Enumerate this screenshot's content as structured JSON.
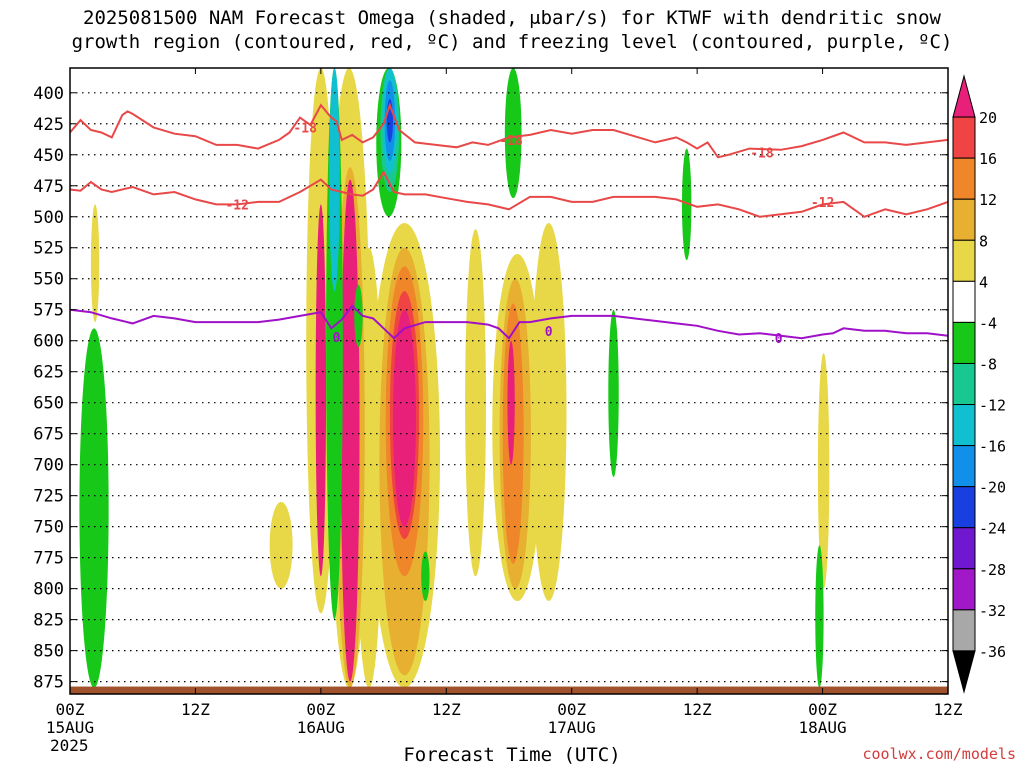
{
  "title_line1": "2025081500 NAM Forecast Omega (shaded, μbar/s) for KTWF with dendritic snow",
  "title_line2": "growth region (contoured, red, ºC) and freezing level (contoured, purple, ºC)",
  "credit": "coolwx.com/models",
  "chart_data": {
    "type": "heatmap",
    "xlabel": "Forecast Time (UTC)",
    "ylabel": "",
    "y_ticks": [
      400,
      425,
      450,
      475,
      500,
      525,
      550,
      575,
      600,
      625,
      650,
      675,
      700,
      725,
      750,
      775,
      800,
      825,
      850,
      875
    ],
    "ylim": [
      380,
      885
    ],
    "xlim": [
      0,
      84
    ],
    "x_ticks": [
      {
        "hour": 0,
        "label": "00Z",
        "sub": "15AUG",
        "sub2": "2025"
      },
      {
        "hour": 12,
        "label": "12Z",
        "sub": "",
        "sub2": ""
      },
      {
        "hour": 24,
        "label": "00Z",
        "sub": "16AUG",
        "sub2": ""
      },
      {
        "hour": 36,
        "label": "12Z",
        "sub": "",
        "sub2": ""
      },
      {
        "hour": 48,
        "label": "00Z",
        "sub": "17AUG",
        "sub2": ""
      },
      {
        "hour": 60,
        "label": "12Z",
        "sub": "",
        "sub2": ""
      },
      {
        "hour": 72,
        "label": "00Z",
        "sub": "18AUG",
        "sub2": ""
      },
      {
        "hour": 84,
        "label": "12Z",
        "sub": "",
        "sub2": ""
      }
    ],
    "grid": true,
    "colorbar": {
      "labels": [
        "20",
        "16",
        "12",
        "8",
        "4",
        "-4",
        "-8",
        "-12",
        "-16",
        "-20",
        "-24",
        "-28",
        "-32",
        "-36"
      ],
      "colors": [
        "#e8207a",
        "#f04444",
        "#f0862a",
        "#e8b030",
        "#e8d848",
        "#ffffff",
        "#18c818",
        "#18c890",
        "#10c0d0",
        "#1090e8",
        "#1840e0",
        "#7018d0",
        "#a018c8",
        "#a8a8a8",
        "#000000"
      ]
    },
    "omega_regions": [
      {
        "level": 4,
        "color": "#e8d848",
        "x": 28.6,
        "p0": 525,
        "p1": 880,
        "w": 1.3
      },
      {
        "level": 4,
        "color": "#e8d848",
        "x": 24.0,
        "p0": 380,
        "p1": 820,
        "w": 1.4
      },
      {
        "level": 4,
        "color": "#e8d848",
        "x": 26.7,
        "p0": 380,
        "p1": 880,
        "w": 2.0
      },
      {
        "level": 4,
        "color": "#e8d848",
        "x": 32.0,
        "p0": 505,
        "p1": 880,
        "w": 3.4
      },
      {
        "level": 4,
        "color": "#e8d848",
        "x": 38.8,
        "p0": 510,
        "p1": 790,
        "w": 1.0
      },
      {
        "level": 4,
        "color": "#e8d848",
        "x": 42.8,
        "p0": 530,
        "p1": 810,
        "w": 2.4
      },
      {
        "level": 4,
        "color": "#e8d848",
        "x": 45.8,
        "p0": 505,
        "p1": 810,
        "w": 1.7
      },
      {
        "level": 4,
        "color": "#e8d848",
        "x": 20.2,
        "p0": 730,
        "p1": 800,
        "w": 1.1
      },
      {
        "level": 4,
        "color": "#e8d848",
        "x": 72.1,
        "p0": 610,
        "p1": 800,
        "w": 0.55
      },
      {
        "level": 4,
        "color": "#e8d848",
        "x": 2.4,
        "p0": 490,
        "p1": 585,
        "w": 0.4
      },
      {
        "level": 8,
        "color": "#e8b030",
        "x": 32.0,
        "p0": 525,
        "p1": 870,
        "w": 2.4
      },
      {
        "level": 8,
        "color": "#e8b030",
        "x": 42.6,
        "p0": 550,
        "p1": 800,
        "w": 1.5
      },
      {
        "level": 8,
        "color": "#e8b030",
        "x": 26.8,
        "p0": 460,
        "p1": 880,
        "w": 1.4
      },
      {
        "level": 12,
        "color": "#f0862a",
        "x": 32.0,
        "p0": 540,
        "p1": 790,
        "w": 1.8
      },
      {
        "level": 12,
        "color": "#f0862a",
        "x": 42.4,
        "p0": 570,
        "p1": 780,
        "w": 1.0
      },
      {
        "level": 16,
        "color": "#f04444",
        "x": 32.0,
        "p0": 560,
        "p1": 760,
        "w": 1.4
      },
      {
        "level": 20,
        "color": "#e8207a",
        "x": 32.0,
        "p0": 575,
        "p1": 750,
        "w": 1.1
      },
      {
        "level": 20,
        "color": "#e8207a",
        "x": 26.8,
        "p0": 470,
        "p1": 875,
        "w": 0.9
      },
      {
        "level": 20,
        "color": "#e8207a",
        "x": 24.0,
        "p0": 490,
        "p1": 790,
        "w": 0.5
      },
      {
        "level": 20,
        "color": "#e8207a",
        "x": 42.2,
        "p0": 600,
        "p1": 700,
        "w": 0.35
      },
      {
        "level": -4,
        "color": "#18c818",
        "x": 2.3,
        "p0": 590,
        "p1": 880,
        "w": 1.4
      },
      {
        "level": -4,
        "color": "#18c818",
        "x": 25.3,
        "p0": 380,
        "p1": 825,
        "w": 0.8
      },
      {
        "level": -4,
        "color": "#18c818",
        "x": 27.6,
        "p0": 555,
        "p1": 605,
        "w": 0.4
      },
      {
        "level": -4,
        "color": "#18c818",
        "x": 30.5,
        "p0": 380,
        "p1": 500,
        "w": 1.2
      },
      {
        "level": -4,
        "color": "#18c818",
        "x": 42.4,
        "p0": 380,
        "p1": 485,
        "w": 0.8
      },
      {
        "level": -4,
        "color": "#18c818",
        "x": 52.0,
        "p0": 575,
        "p1": 710,
        "w": 0.5
      },
      {
        "level": -4,
        "color": "#18c818",
        "x": 59.0,
        "p0": 445,
        "p1": 535,
        "w": 0.45
      },
      {
        "level": -4,
        "color": "#18c818",
        "x": 71.7,
        "p0": 765,
        "p1": 880,
        "w": 0.4
      },
      {
        "level": -4,
        "color": "#18c818",
        "x": 34.0,
        "p0": 770,
        "p1": 810,
        "w": 0.4
      },
      {
        "level": -8,
        "color": "#18c890",
        "x": 30.6,
        "p0": 380,
        "p1": 480,
        "w": 0.9
      },
      {
        "level": -12,
        "color": "#10c0d0",
        "x": 30.6,
        "p0": 380,
        "p1": 465,
        "w": 0.7
      },
      {
        "level": -12,
        "color": "#10c0d0",
        "x": 25.3,
        "p0": 380,
        "p1": 560,
        "w": 0.5
      },
      {
        "level": -16,
        "color": "#1090e8",
        "x": 30.6,
        "p0": 390,
        "p1": 455,
        "w": 0.5
      },
      {
        "level": -20,
        "color": "#1840e0",
        "x": 30.6,
        "p0": 405,
        "p1": 440,
        "w": 0.3
      }
    ],
    "series": [
      {
        "name": "-18",
        "color": "#e84848",
        "x": [
          0,
          1,
          2,
          3,
          4,
          5,
          5.5,
          6,
          8,
          10,
          12,
          14,
          16,
          18,
          20,
          21,
          22,
          23,
          24,
          25,
          25.5,
          26,
          27,
          28,
          29,
          30,
          30.6,
          31.5,
          33,
          35,
          37,
          38.5,
          40,
          42,
          44,
          46,
          48,
          50,
          52,
          54,
          56,
          57,
          58,
          59,
          60,
          61,
          62,
          63,
          65,
          68,
          70,
          72,
          74,
          76,
          78,
          80,
          82,
          84
        ],
        "y": [
          432,
          422,
          430,
          432,
          436,
          418,
          415,
          417,
          428,
          433,
          435,
          442,
          442,
          445,
          438,
          432,
          420,
          426,
          410,
          420,
          423,
          438,
          434,
          440,
          436,
          425,
          410,
          430,
          440,
          442,
          444,
          440,
          442,
          436,
          434,
          430,
          433,
          430,
          430,
          435,
          440,
          438,
          436,
          440,
          445,
          440,
          452,
          450,
          445,
          446,
          443,
          438,
          432,
          440,
          440,
          442,
          440,
          438
        ]
      },
      {
        "name": "-12",
        "color": "#e84848",
        "x": [
          0,
          1,
          2,
          3,
          4,
          6,
          8,
          10,
          12,
          14,
          16,
          18,
          20,
          22,
          24,
          25,
          26,
          27,
          28,
          29,
          30,
          31,
          32,
          34,
          36,
          38,
          40,
          42,
          44,
          46,
          48,
          50,
          52,
          54,
          56,
          58,
          60,
          62,
          64,
          66,
          68,
          70,
          72,
          74,
          76,
          78,
          80,
          82,
          84
        ],
        "y": [
          478,
          479,
          472,
          478,
          480,
          476,
          482,
          480,
          486,
          490,
          490,
          488,
          488,
          480,
          470,
          478,
          480,
          482,
          483,
          478,
          464,
          480,
          482,
          482,
          485,
          488,
          490,
          494,
          484,
          484,
          488,
          488,
          484,
          484,
          484,
          486,
          492,
          490,
          494,
          500,
          498,
          496,
          490,
          488,
          500,
          494,
          498,
          494,
          488
        ]
      },
      {
        "name": "0",
        "color": "#a010c8",
        "x": [
          0,
          2,
          4,
          6,
          8,
          10,
          12,
          14,
          16,
          18,
          20,
          22,
          24,
          25,
          26,
          27,
          28,
          29,
          30,
          31,
          32,
          34,
          36,
          38,
          40,
          41,
          42,
          43,
          44,
          46,
          48,
          50,
          52,
          54,
          56,
          58,
          60,
          62,
          64,
          66,
          68,
          70,
          72,
          73,
          74,
          76,
          78,
          80,
          82,
          84
        ],
        "y": [
          575,
          577,
          582,
          586,
          580,
          582,
          585,
          585,
          585,
          585,
          583,
          580,
          577,
          590,
          583,
          572,
          580,
          582,
          590,
          598,
          590,
          585,
          585,
          585,
          587,
          590,
          598,
          585,
          585,
          582,
          580,
          580,
          580,
          582,
          584,
          586,
          588,
          592,
          595,
          594,
          596,
          598,
          595,
          594,
          590,
          592,
          592,
          594,
          594,
          596
        ]
      }
    ],
    "contour_labels": [
      {
        "text": "-18",
        "series": "-18",
        "x": 22.5,
        "p": 428
      },
      {
        "text": "-18",
        "series": "-18",
        "x": 42.2,
        "p": 438
      },
      {
        "text": "-18",
        "series": "-18",
        "x": 66.2,
        "p": 448
      },
      {
        "text": "-12",
        "series": "-12",
        "x": 16.0,
        "p": 490
      },
      {
        "text": "-12",
        "series": "-12",
        "x": 72.0,
        "p": 488
      },
      {
        "text": "0",
        "series": "0",
        "x": 25.5,
        "p": 597
      },
      {
        "text": "0",
        "series": "0",
        "x": 45.8,
        "p": 592
      },
      {
        "text": "0",
        "series": "0",
        "x": 67.8,
        "p": 598
      }
    ],
    "terrain_color": "#a0522d"
  }
}
